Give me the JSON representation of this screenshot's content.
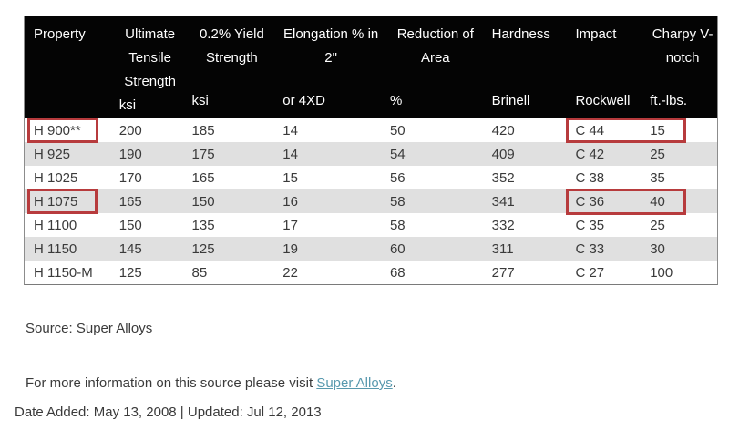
{
  "table": {
    "columns": [
      {
        "title": "Property",
        "unit": ""
      },
      {
        "title": "Ultimate Tensile Strength",
        "unit": "ksi"
      },
      {
        "title": "0.2% Yield Strength",
        "unit": "ksi"
      },
      {
        "title": "Elongation % in 2\"",
        "unit": "or 4XD"
      },
      {
        "title": "Reduction of Area",
        "unit": "%"
      },
      {
        "title": "Hardness",
        "unit": "Brinell"
      },
      {
        "title": "Impact",
        "unit": "Rockwell"
      },
      {
        "title": "Charpy V-notch",
        "unit": "ft.-lbs."
      }
    ],
    "rows": [
      [
        "H 900**",
        "200",
        "185",
        "14",
        "50",
        "420",
        "C 44",
        "15"
      ],
      [
        "H 925",
        "190",
        "175",
        "14",
        "54",
        "409",
        "C 42",
        "25"
      ],
      [
        "H 1025",
        "170",
        "165",
        "15",
        "56",
        "352",
        "C 38",
        "35"
      ],
      [
        "H 1075",
        "165",
        "150",
        "16",
        "58",
        "341",
        "C 36",
        "40"
      ],
      [
        "H 1100",
        "150",
        "135",
        "17",
        "58",
        "332",
        "C 35",
        "25"
      ],
      [
        "H 1150",
        "145",
        "125",
        "19",
        "60",
        "311",
        "C 33",
        "30"
      ],
      [
        "H 1150-M",
        "125",
        "85",
        "22",
        "68",
        "277",
        "C 27",
        "100"
      ]
    ],
    "highlights": [
      {
        "row": "H 900**",
        "cells": [
          "Property"
        ]
      },
      {
        "row": "H 900**",
        "cells": [
          "Impact",
          "Charpy V-notch"
        ]
      },
      {
        "row": "H 1075",
        "cells": [
          "Property"
        ]
      },
      {
        "row": "H 1075",
        "cells": [
          "Impact",
          "Charpy V-notch"
        ]
      }
    ]
  },
  "footer": {
    "source_label": "Source: Super Alloys",
    "more_info_prefix": "For more information on this source please visit ",
    "more_info_link": "Super Alloys",
    "more_info_suffix": ".",
    "date_line": "Date Added: May 13, 2008 | Updated: Jul 12, 2013"
  },
  "colors": {
    "header_bg": "#040404",
    "stripe_gray": "#e0e0e0",
    "highlight_red": "#b73b3d",
    "link_blue": "#5899ae"
  }
}
